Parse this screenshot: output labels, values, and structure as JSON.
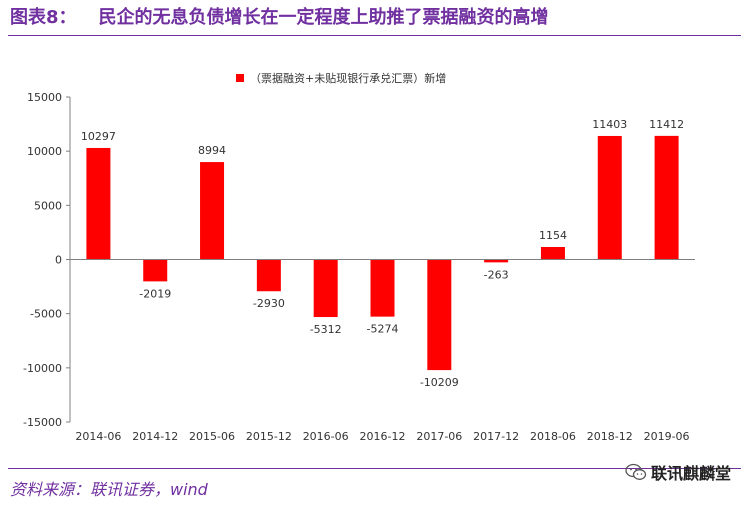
{
  "header": {
    "figure_label": "图表8：",
    "figure_title": "民企的无息负债增长在一定程度上助推了票据融资的高增"
  },
  "footer": {
    "source": "资料来源：联讯证券，wind",
    "watermark": "联讯麒麟堂",
    "watermark_icon": "wechat-icon"
  },
  "colors": {
    "bar": "#ff0000",
    "accent": "#7030a0",
    "axis": "#808080"
  },
  "chart_data": {
    "type": "bar",
    "categories": [
      "2014-06",
      "2014-12",
      "2015-06",
      "2015-12",
      "2016-06",
      "2016-12",
      "2017-06",
      "2017-12",
      "2018-06",
      "2018-12",
      "2019-06"
    ],
    "series": [
      {
        "name": "（票据融资+未贴现银行承兑汇票）新增",
        "values": [
          10297,
          -2019,
          8994,
          -2930,
          -5312,
          -5274,
          -10209,
          -263,
          1154,
          11403,
          11412
        ]
      }
    ],
    "ylim": [
      -15000,
      15000
    ],
    "yticks": [
      15000,
      10000,
      5000,
      0,
      -5000,
      -10000,
      -15000
    ],
    "grid": false,
    "legend_position": "top-center",
    "data_labels": true
  }
}
